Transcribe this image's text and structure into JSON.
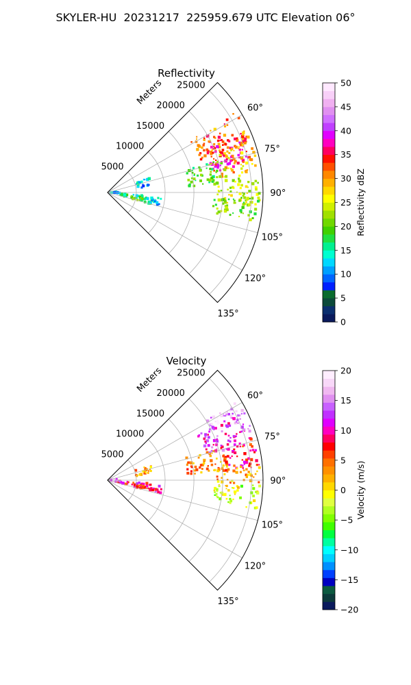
{
  "title": "SKYLER-HU  20231217  225959.679 UTC Elevation 06°",
  "chart_data": [
    {
      "type": "heatmap",
      "subtype": "polar-ppi",
      "title": "Reflectivity",
      "range_label": "Meters",
      "range_ticks": [
        5000,
        10000,
        15000,
        20000,
        25000
      ],
      "range_max": 27000,
      "azimuth_range_deg": [
        45,
        135
      ],
      "azimuth_ticks": [
        "60°",
        "75°",
        "90°",
        "105°",
        "120°",
        "135°"
      ],
      "grid": true,
      "colorbar": {
        "label": "Reflectivity dBZ",
        "range": [
          0,
          50
        ],
        "ticks": [
          "0",
          "5",
          "10",
          "15",
          "20",
          "25",
          "30",
          "35",
          "40",
          "45",
          "50"
        ],
        "colors": [
          "#0a1a5c",
          "#0b2f6e",
          "#0c4a3a",
          "#0a6b2e",
          "#0020ff",
          "#0066ff",
          "#00a0ff",
          "#00d8ff",
          "#00ffd0",
          "#00f090",
          "#20e040",
          "#40d000",
          "#70d800",
          "#a0e000",
          "#d0f000",
          "#ffff00",
          "#ffd800",
          "#ffb000",
          "#ff8800",
          "#ff5000",
          "#ff1000",
          "#ff0060",
          "#ff00c0",
          "#e000ff",
          "#c040ff",
          "#d070ff",
          "#e090f0",
          "#f0b0f0",
          "#f8d0f8",
          "#ffe8ff"
        ]
      },
      "echoes": [
        {
          "az": [
            58,
            71
          ],
          "r": [
            17000,
            26500
          ],
          "value": 32
        },
        {
          "az": [
            66,
            79
          ],
          "r": [
            18500,
            25500
          ],
          "value": 36
        },
        {
          "az": [
            70,
            83
          ],
          "r": [
            20000,
            26500
          ],
          "value": 28
        },
        {
          "az": [
            74,
            86
          ],
          "r": [
            14000,
            21000
          ],
          "value": 20
        },
        {
          "az": [
            84,
            95
          ],
          "r": [
            19000,
            26500
          ],
          "value": 24
        },
        {
          "az": [
            92,
            101
          ],
          "r": [
            18500,
            26500
          ],
          "value": 21
        },
        {
          "az": [
            70,
            82
          ],
          "r": [
            5000,
            8000
          ],
          "value": 12
        },
        {
          "az": [
            94,
            102
          ],
          "r": [
            1200,
            7000
          ],
          "value": 16
        },
        {
          "az": [
            99,
            105
          ],
          "r": [
            4000,
            8000
          ],
          "value": 19
        },
        {
          "az": [
            96,
            104
          ],
          "r": [
            6500,
            9500
          ],
          "value": 13
        },
        {
          "az": [
            84,
            96
          ],
          "r": [
            300,
            2200
          ],
          "value": 11
        }
      ]
    },
    {
      "type": "heatmap",
      "subtype": "polar-ppi",
      "title": "Velocity",
      "range_label": "Meters",
      "range_ticks": [
        5000,
        10000,
        15000,
        20000,
        25000
      ],
      "range_max": 27000,
      "azimuth_range_deg": [
        45,
        135
      ],
      "azimuth_ticks": [
        "60°",
        "75°",
        "90°",
        "105°",
        "120°",
        "135°"
      ],
      "grid": true,
      "colorbar": {
        "label": "Velocity (m/s)",
        "range": [
          -20,
          20
        ],
        "ticks": [
          "−20",
          "−15",
          "−10",
          "−5",
          "0",
          "5",
          "10",
          "15",
          "20"
        ],
        "colors": [
          "#0a1a5c",
          "#0c3a3a",
          "#0c5a40",
          "#0000c0",
          "#0040ff",
          "#0090ff",
          "#00d0ff",
          "#00ffff",
          "#00ffa0",
          "#00ff40",
          "#40ff00",
          "#80ff00",
          "#b0ff20",
          "#e0ff40",
          "#ffff00",
          "#ffd800",
          "#ffb000",
          "#ff9000",
          "#ff7000",
          "#ff4000",
          "#ff0000",
          "#ff0060",
          "#ff00c0",
          "#e000ff",
          "#c030ff",
          "#c860ff",
          "#e090f0",
          "#f0b8f0",
          "#f8d8f8",
          "#ffeeff"
        ]
      },
      "echoes": [
        {
          "az": [
            58,
            66
          ],
          "r": [
            20000,
            26500
          ],
          "value": 16
        },
        {
          "az": [
            63,
            76
          ],
          "r": [
            17500,
            26500
          ],
          "value": 12
        },
        {
          "az": [
            74,
            85
          ],
          "r": [
            20000,
            26500
          ],
          "value": 8
        },
        {
          "az": [
            74,
            86
          ],
          "r": [
            14000,
            21000
          ],
          "value": 4
        },
        {
          "az": [
            84,
            93
          ],
          "r": [
            19000,
            26500
          ],
          "value": 2
        },
        {
          "az": [
            92,
            101
          ],
          "r": [
            18500,
            26500
          ],
          "value": -2
        },
        {
          "az": [
            70,
            82
          ],
          "r": [
            5000,
            8000
          ],
          "value": 3
        },
        {
          "az": [
            94,
            102
          ],
          "r": [
            1200,
            7000
          ],
          "value": 9
        },
        {
          "az": [
            99,
            105
          ],
          "r": [
            4000,
            8000
          ],
          "value": 6
        },
        {
          "az": [
            96,
            104
          ],
          "r": [
            6500,
            9500
          ],
          "value": 10
        },
        {
          "az": [
            84,
            96
          ],
          "r": [
            300,
            2200
          ],
          "value": 15
        }
      ]
    }
  ]
}
